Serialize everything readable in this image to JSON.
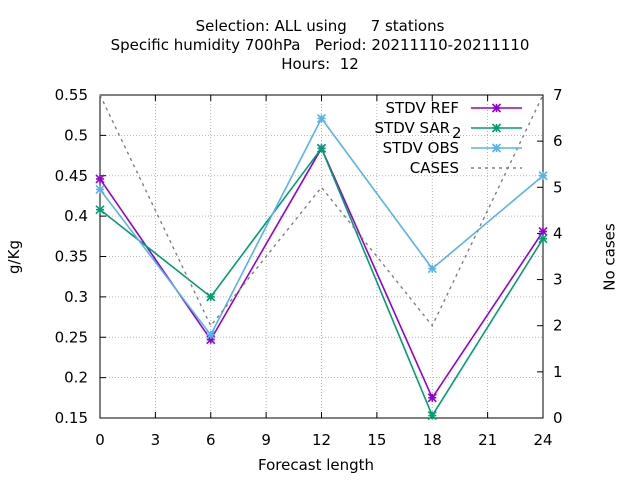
{
  "chart_data": {
    "type": "line",
    "title_lines": [
      "Selection: ALL using     7 stations",
      "Specific humidity 700hPa   Period: 20211110-20211110",
      "Hours:  12"
    ],
    "xlabel": "Forecast length",
    "ylabel": "g/Kg",
    "y2label": "No cases",
    "x": [
      0,
      6,
      12,
      18,
      24
    ],
    "xticks": [
      0,
      3,
      6,
      9,
      12,
      15,
      18,
      21,
      24
    ],
    "xlim": [
      0,
      24
    ],
    "ylim": [
      0.15,
      0.55
    ],
    "yticks": [
      0.15,
      0.2,
      0.25,
      0.3,
      0.35,
      0.4,
      0.45,
      0.5,
      0.55
    ],
    "ytick_labels": [
      "0.15",
      "0.2",
      "0.25",
      "0.3",
      "0.35",
      "0.4",
      "0.45",
      "0.5",
      "0.55"
    ],
    "y2lim": [
      0,
      7
    ],
    "y2ticks": [
      0,
      1,
      2,
      3,
      4,
      5,
      6,
      7
    ],
    "grid": true,
    "legend_position": "top-right",
    "series": [
      {
        "name": "STDV REF",
        "name_sub": "",
        "axis": "y1",
        "color": "#9400d3",
        "style": "solid",
        "marker": "asterisk",
        "values": [
          0.446,
          0.247,
          0.484,
          0.175,
          0.381
        ]
      },
      {
        "name": "STDV SAR",
        "name_sub": "2",
        "axis": "y1",
        "color": "#009e73",
        "style": "solid",
        "marker": "asterisk",
        "values": [
          0.408,
          0.3,
          0.484,
          0.153,
          0.372
        ]
      },
      {
        "name": "STDV OBS",
        "name_sub": "",
        "axis": "y1",
        "color": "#56b4e9",
        "style": "solid",
        "marker": "asterisk",
        "values": [
          0.433,
          0.253,
          0.521,
          0.335,
          0.45
        ]
      },
      {
        "name": "CASES",
        "name_sub": "",
        "axis": "y2",
        "color": "#808080",
        "style": "dashed",
        "marker": "none",
        "values": [
          7,
          2,
          5,
          2,
          7
        ]
      }
    ]
  }
}
